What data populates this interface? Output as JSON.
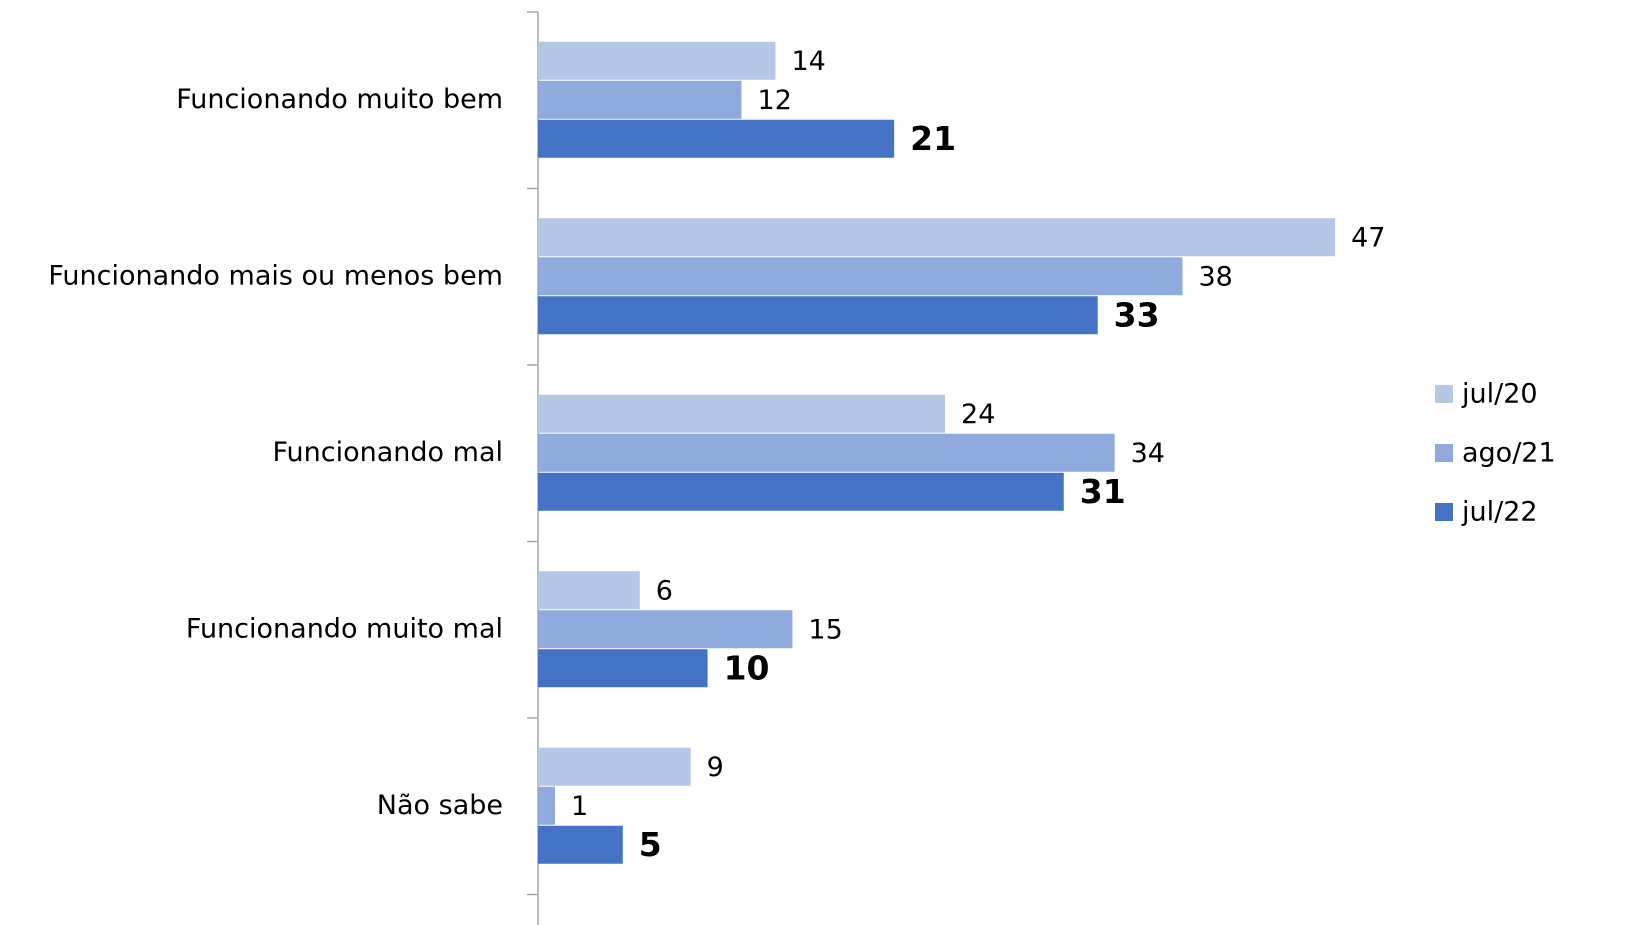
{
  "chart_data": {
    "type": "hbar",
    "categories": [
      "Funcionando muito bem",
      "Funcionando mais ou menos bem",
      "Funcionando mal",
      "Funcionando muito mal",
      "Não sabe"
    ],
    "series": [
      {
        "name": "jul/20",
        "color": "#b4c7e7",
        "values": [
          14,
          47,
          24,
          6,
          9
        ]
      },
      {
        "name": "ago/21",
        "color": "#8faadc",
        "values": [
          12,
          38,
          34,
          15,
          1
        ]
      },
      {
        "name": "jul/22",
        "color": "#4472c4",
        "values": [
          21,
          33,
          31,
          10,
          5
        ],
        "bold": true
      }
    ],
    "xlim": [
      0,
      50
    ],
    "legend": "right"
  }
}
